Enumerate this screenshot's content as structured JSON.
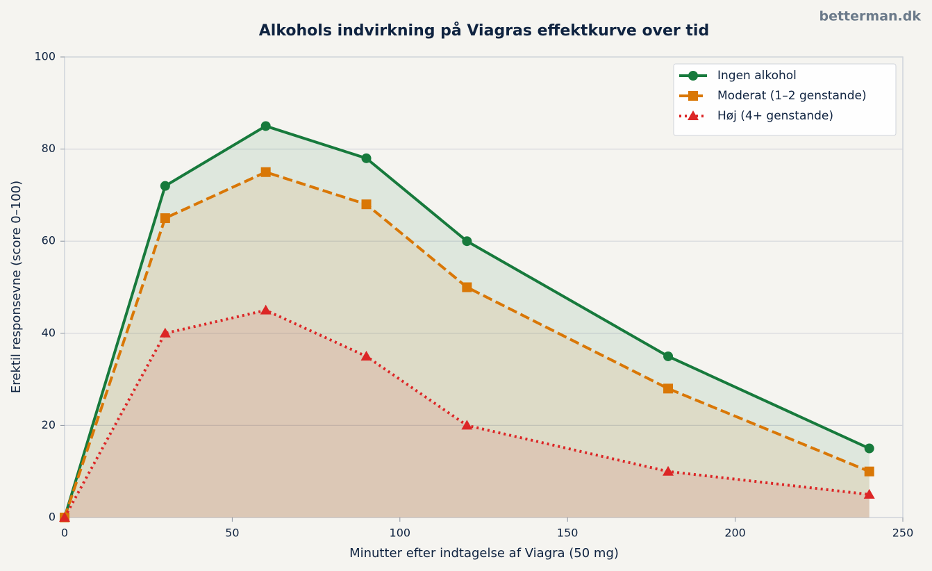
{
  "chart_data": {
    "type": "line",
    "title": "Alkohols indvirkning på Viagras effektkurve over tid",
    "watermark": "betterman.dk",
    "x_label": "Minutter efter indtagelse af Viagra (50 mg)",
    "y_label": "Erektil responsevne (score 0–100)",
    "x": [
      0,
      30,
      60,
      90,
      120,
      180,
      240
    ],
    "series": [
      {
        "name": "Ingen alkohol",
        "color": "#177a3c",
        "line_style": "solid",
        "marker": "circle",
        "values": [
          0,
          72,
          85,
          78,
          60,
          35,
          15
        ]
      },
      {
        "name": "Moderat (1–2 genstande)",
        "color": "#d97706",
        "line_style": "dashed",
        "marker": "square",
        "values": [
          0,
          65,
          75,
          68,
          50,
          28,
          10
        ]
      },
      {
        "name": "Høj (4+ genstande)",
        "color": "#dc2626",
        "line_style": "dotted",
        "marker": "triangle",
        "values": [
          0,
          40,
          45,
          35,
          20,
          10,
          5
        ]
      }
    ],
    "xlim": [
      0,
      250
    ],
    "xticks": [
      0,
      50,
      100,
      150,
      200,
      250
    ],
    "ylim": [
      0,
      100
    ],
    "yticks": [
      0,
      20,
      40,
      60,
      80,
      100
    ],
    "grid": true,
    "legend": "upper right",
    "area_fill": true
  }
}
